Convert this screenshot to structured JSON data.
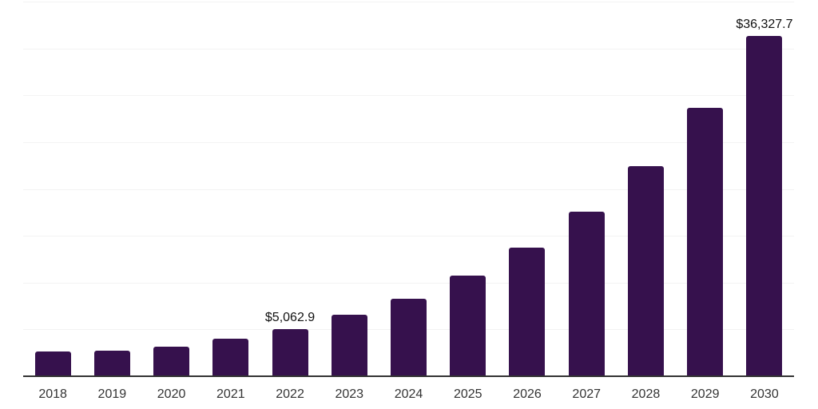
{
  "chart_data": {
    "type": "bar",
    "title": "",
    "categories": [
      "2018",
      "2019",
      "2020",
      "2021",
      "2022",
      "2023",
      "2024",
      "2025",
      "2026",
      "2027",
      "2028",
      "2029",
      "2030"
    ],
    "values": [
      2620,
      2700,
      3190,
      4010,
      5062.9,
      6540,
      8310,
      10750,
      13710,
      17550,
      22390,
      28620,
      36327.7
    ],
    "point_labels": [
      "",
      "",
      "",
      "",
      "$5,062.9",
      "",
      "",
      "",
      "",
      "",
      "",
      "",
      "$36,327.7"
    ],
    "xlabel": "",
    "ylabel": "",
    "ylim": [
      0,
      40000
    ],
    "grid_step": 5000,
    "grid_visible": true,
    "legend_position": "none",
    "colors": {
      "bar": "#36114d",
      "grid": "#f3f3f3",
      "axis_line": "#333333",
      "tick_label": "#333333",
      "data_label": "#111111",
      "background": "#ffffff"
    }
  }
}
